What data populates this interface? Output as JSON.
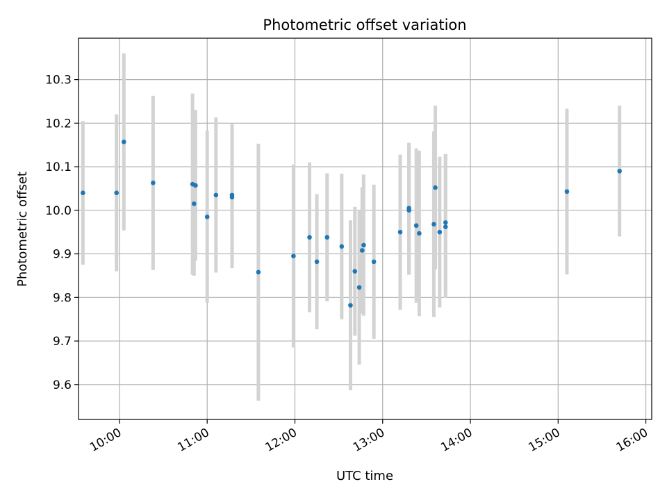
{
  "chart_data": {
    "type": "scatter",
    "title": "Photometric offset variation",
    "xlabel": "UTC time",
    "ylabel": "Photometric offset",
    "x_ticks": [
      "10:00",
      "11:00",
      "12:00",
      "13:00",
      "14:00",
      "15:00",
      "16:00"
    ],
    "y_ticks": [
      "9.6",
      "9.7",
      "9.8",
      "9.9",
      "10.0",
      "10.1",
      "10.2",
      "10.3"
    ],
    "xlim": [
      "09:32",
      "16:04"
    ],
    "ylim": [
      9.52,
      10.395
    ],
    "grid": true,
    "colors": {
      "marker": "#1f77b4",
      "errorbar": "#d3d3d3",
      "grid": "#b0b0b0"
    },
    "points": [
      {
        "x": "09:35",
        "y": 10.04,
        "err": 0.165
      },
      {
        "x": "09:58",
        "y": 10.04,
        "err": 0.18
      },
      {
        "x": "10:03",
        "y": 10.157,
        "err": 0.203
      },
      {
        "x": "10:23",
        "y": 10.063,
        "err": 0.2
      },
      {
        "x": "10:50",
        "y": 10.06,
        "err": 0.208
      },
      {
        "x": "10:51",
        "y": 10.015,
        "err": 0.165
      },
      {
        "x": "10:52",
        "y": 10.057,
        "err": 0.173
      },
      {
        "x": "11:00",
        "y": 9.985,
        "err": 0.197
      },
      {
        "x": "11:06",
        "y": 10.035,
        "err": 0.178
      },
      {
        "x": "11:17",
        "y": 10.035,
        "err": 0.163
      },
      {
        "x": "11:17",
        "y": 10.03,
        "err": 0.163
      },
      {
        "x": "11:35",
        "y": 9.858,
        "err": 0.295
      },
      {
        "x": "11:59",
        "y": 9.895,
        "err": 0.21
      },
      {
        "x": "12:10",
        "y": 9.938,
        "err": 0.172
      },
      {
        "x": "12:15",
        "y": 9.882,
        "err": 0.155
      },
      {
        "x": "12:22",
        "y": 9.938,
        "err": 0.147
      },
      {
        "x": "12:32",
        "y": 9.917,
        "err": 0.167
      },
      {
        "x": "12:38",
        "y": 9.782,
        "err": 0.195
      },
      {
        "x": "12:41",
        "y": 9.86,
        "err": 0.148
      },
      {
        "x": "12:44",
        "y": 9.823,
        "err": 0.177
      },
      {
        "x": "12:46",
        "y": 9.908,
        "err": 0.145
      },
      {
        "x": "12:47",
        "y": 9.92,
        "err": 0.162
      },
      {
        "x": "12:54",
        "y": 9.882,
        "err": 0.177
      },
      {
        "x": "13:12",
        "y": 9.95,
        "err": 0.178
      },
      {
        "x": "13:18",
        "y": 10.005,
        "err": 0.15
      },
      {
        "x": "13:18",
        "y": 10.0,
        "err": 0.148
      },
      {
        "x": "13:23",
        "y": 9.965,
        "err": 0.177
      },
      {
        "x": "13:25",
        "y": 9.947,
        "err": 0.19
      },
      {
        "x": "13:35",
        "y": 9.968,
        "err": 0.213
      },
      {
        "x": "13:36",
        "y": 10.052,
        "err": 0.188
      },
      {
        "x": "13:39",
        "y": 9.95,
        "err": 0.173
      },
      {
        "x": "13:43",
        "y": 9.962,
        "err": 0.163
      },
      {
        "x": "13:43",
        "y": 9.972,
        "err": 0.157
      },
      {
        "x": "15:06",
        "y": 10.043,
        "err": 0.19
      },
      {
        "x": "15:42",
        "y": 10.09,
        "err": 0.15
      }
    ]
  }
}
